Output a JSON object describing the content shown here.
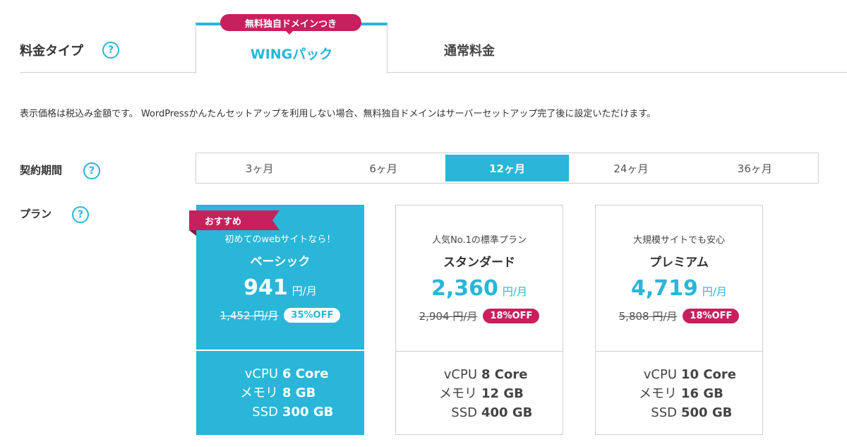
{
  "header": {
    "type_label": "料金タイプ",
    "help_glyph": "?",
    "promo_badge": "無料独自ドメインつき",
    "tabs": [
      {
        "label": "WINGパック",
        "active": true
      },
      {
        "label": "通常料金",
        "active": false
      }
    ]
  },
  "notice": "表示価格は税込み金額です。 WordPressかんたんセットアップを利用しない場合、無料独自ドメインはサーバーセットアップ完了後に設定いただけます。",
  "period": {
    "label": "契約期間",
    "options": [
      "3ヶ月",
      "6ヶ月",
      "12ヶ月",
      "24ヶ月",
      "36ヶ月"
    ],
    "selected": "12ヶ月"
  },
  "plans": {
    "label": "プラン",
    "recommend_badge": "おすすめ",
    "items": [
      {
        "tagline": "初めてのwebサイトなら！",
        "name": "ベーシック",
        "price": "941",
        "unit": "円/月",
        "old_price": "1,452 円/月",
        "discount": "35%OFF",
        "featured": true,
        "specs": [
          {
            "key": "vCPU",
            "value": "6 Core"
          },
          {
            "key": "メモリ",
            "value": "8 GB"
          },
          {
            "key": "SSD",
            "value": "300 GB"
          }
        ]
      },
      {
        "tagline": "人気No.1の標準プラン",
        "name": "スタンダード",
        "price": "2,360",
        "unit": "円/月",
        "old_price": "2,904 円/月",
        "discount": "18%OFF",
        "featured": false,
        "specs": [
          {
            "key": "vCPU",
            "value": "8 Core"
          },
          {
            "key": "メモリ",
            "value": "12 GB"
          },
          {
            "key": "SSD",
            "value": "400 GB"
          }
        ]
      },
      {
        "tagline": "大規模サイトでも安心",
        "name": "プレミアム",
        "price": "4,719",
        "unit": "円/月",
        "old_price": "5,808 円/月",
        "discount": "18%OFF",
        "featured": false,
        "specs": [
          {
            "key": "vCPU",
            "value": "10 Core"
          },
          {
            "key": "メモリ",
            "value": "16 GB"
          },
          {
            "key": "SSD",
            "value": "500 GB"
          }
        ]
      }
    ]
  },
  "colors": {
    "accent": "#29b6d8",
    "highlight": "#c8205e",
    "border": "#d0d0d0"
  }
}
